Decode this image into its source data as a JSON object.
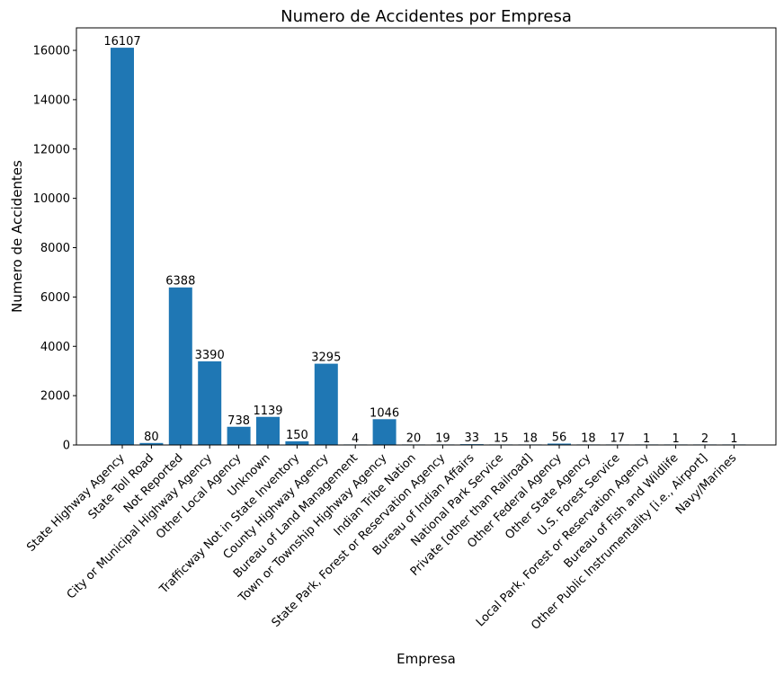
{
  "chart_data": {
    "type": "bar",
    "title": "Numero de Accidentes por Empresa",
    "xlabel": "Empresa",
    "ylabel": "Numero de Accidentes",
    "ylim": [
      0,
      16912
    ],
    "yticks": [
      0,
      2000,
      4000,
      6000,
      8000,
      10000,
      12000,
      14000,
      16000
    ],
    "grid": false,
    "legend": "none",
    "bar_color": "#1f77b4",
    "categories": [
      "State Highway Agency",
      "State Toll Road",
      "Not Reported",
      "City or Municipal Highway Agency",
      "Other Local Agency",
      "Unknown",
      "Trafficway Not in State Inventory",
      "County Highway Agency",
      "Bureau of Land Management",
      "Town or Township Highway Agency",
      "Indian Tribe Nation",
      "State Park, Forest or Reservation Agency",
      "Bureau of Indian Affairs",
      "National Park Service",
      "Private [other than Railroad]",
      "Other Federal Agency",
      "Other State Agency",
      "U.S. Forest Service",
      "Local Park, Forest or Reservation Agency",
      "Bureau of Fish and Wildlife",
      "Other Public Instrumentality [i.e., Airport]",
      "Navy/Marines"
    ],
    "values": [
      16107,
      80,
      6388,
      3390,
      738,
      1139,
      150,
      3295,
      4,
      1046,
      20,
      19,
      33,
      15,
      18,
      56,
      18,
      17,
      1,
      1,
      2,
      1
    ]
  }
}
